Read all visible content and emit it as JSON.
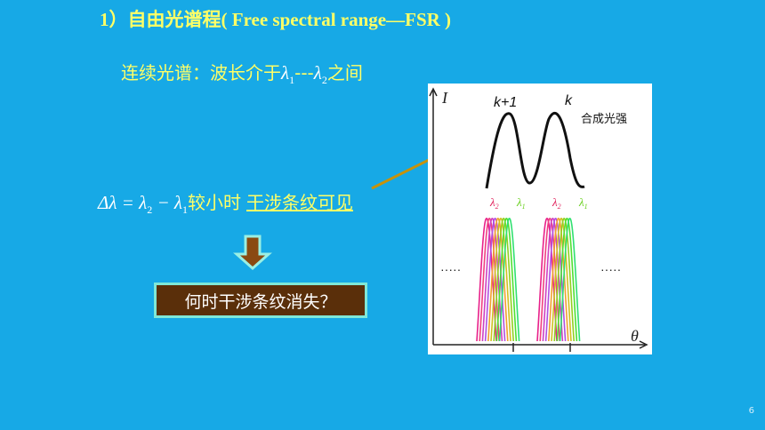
{
  "slide": {
    "title": "1）自由光谱程( Free spectral range—FSR )",
    "continuous_label": "连续光谱：波长介于",
    "lambda": "λ",
    "sub1": "1",
    "sub2": "2",
    "dashes": "---",
    "between": "之间",
    "formula": {
      "delta": "Δλ",
      "equals": " = ",
      "minus": " − ",
      "condition": "较小时",
      "link_text": "干涉条纹可见"
    },
    "callout_text": "何时干涉条纹消失？",
    "page_number": "6"
  },
  "figure": {
    "y_axis_label": "I",
    "x_axis_label": "θ",
    "peak_left_label": "k+1",
    "peak_right_label": "k",
    "combined_label": "合成光强",
    "lambda_label": "λ",
    "sub1": "1",
    "sub2": "2",
    "dots": "·····",
    "colors": {
      "arrow": "#c8920a",
      "callout_bg": "#5a2f0a",
      "callout_border": "#7fe8d8",
      "title": "#ffff66",
      "background": "#17a9e6"
    }
  }
}
